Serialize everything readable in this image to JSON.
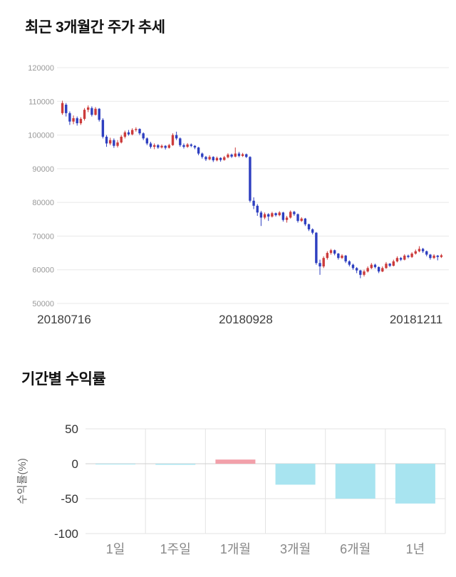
{
  "sections": {
    "price_trend": {
      "title": "최근 3개월간 주가 추세"
    },
    "period_returns": {
      "title": "기간별 수익률"
    }
  },
  "chart_data": [
    {
      "type": "candlestick",
      "title": "최근 3개월간 주가 추세",
      "x_tick_labels": [
        "20180716",
        "20180928",
        "20181211"
      ],
      "y_ticks": [
        120000,
        110000,
        100000,
        90000,
        80000,
        70000,
        60000,
        50000
      ],
      "ylim": [
        50000,
        120000
      ],
      "up_color": "#cc3b3b",
      "down_color": "#2e3fc0",
      "grid_color": "#e8e8e8",
      "tick_label_color": "#999999",
      "x_label_color": "#3d3d3d",
      "candles": [
        [
          106500,
          110200,
          106000,
          109500
        ],
        [
          109000,
          109500,
          105500,
          106500
        ],
        [
          106500,
          107000,
          103000,
          104000
        ],
        [
          104000,
          105800,
          103200,
          105000
        ],
        [
          105000,
          105500,
          102800,
          103500
        ],
        [
          103500,
          105300,
          103000,
          104800
        ],
        [
          104800,
          108000,
          104300,
          107500
        ],
        [
          107500,
          108800,
          106800,
          108200
        ],
        [
          108000,
          108500,
          105500,
          106000
        ],
        [
          106000,
          108300,
          105800,
          107800
        ],
        [
          107800,
          108000,
          104000,
          104500
        ],
        [
          104500,
          105000,
          99000,
          99500
        ],
        [
          99500,
          100000,
          96500,
          97500
        ],
        [
          97500,
          99200,
          97000,
          98500
        ],
        [
          98500,
          99000,
          96200,
          96800
        ],
        [
          96800,
          98500,
          96300,
          97800
        ],
        [
          97800,
          100000,
          97500,
          99500
        ],
        [
          99500,
          101300,
          99000,
          100800
        ],
        [
          100800,
          101500,
          99800,
          100200
        ],
        [
          100200,
          102000,
          99900,
          101500
        ],
        [
          101500,
          102300,
          101000,
          101800
        ],
        [
          101800,
          102000,
          100000,
          100500
        ],
        [
          100500,
          100800,
          98500,
          99000
        ],
        [
          99000,
          99300,
          97000,
          97500
        ],
        [
          97500,
          98000,
          96000,
          96500
        ],
        [
          96500,
          97500,
          95800,
          97000
        ],
        [
          97000,
          97300,
          95900,
          96300
        ],
        [
          96300,
          97200,
          96000,
          96800
        ],
        [
          96800,
          97000,
          95700,
          96200
        ],
        [
          96200,
          97400,
          96000,
          97000
        ],
        [
          97000,
          100500,
          96800,
          100000
        ],
        [
          100000,
          101000,
          98500,
          99000
        ],
        [
          99000,
          99300,
          96500,
          97000
        ],
        [
          97000,
          97500,
          96000,
          96500
        ],
        [
          96500,
          97600,
          96200,
          97200
        ],
        [
          97200,
          97500,
          96400,
          96800
        ],
        [
          96800,
          97000,
          95800,
          96300
        ],
        [
          96300,
          96500,
          94000,
          94500
        ],
        [
          94500,
          94800,
          93000,
          93500
        ],
        [
          93500,
          93800,
          92300,
          92800
        ],
        [
          92800,
          94000,
          92500,
          93500
        ],
        [
          93500,
          93700,
          92000,
          92500
        ],
        [
          92500,
          93600,
          92200,
          93200
        ],
        [
          93200,
          93400,
          92100,
          92600
        ],
        [
          92600,
          93800,
          92400,
          93400
        ],
        [
          93400,
          94600,
          93100,
          94200
        ],
        [
          94200,
          94500,
          93200,
          93600
        ],
        [
          93600,
          96300,
          93400,
          94500
        ],
        [
          94500,
          95000,
          93400,
          93800
        ],
        [
          93800,
          94700,
          93500,
          94300
        ],
        [
          94300,
          94500,
          93200,
          93500
        ],
        [
          93500,
          93700,
          80000,
          80500
        ],
        [
          80500,
          81500,
          78000,
          79000
        ],
        [
          79000,
          79500,
          76000,
          77000
        ],
        [
          77000,
          77500,
          73000,
          75500
        ],
        [
          75500,
          77000,
          75000,
          76500
        ],
        [
          76500,
          76800,
          74500,
          75800
        ],
        [
          75800,
          77200,
          75500,
          76800
        ],
        [
          76800,
          77000,
          75800,
          76200
        ],
        [
          76200,
          77400,
          75900,
          77000
        ],
        [
          77000,
          77200,
          74300,
          74800
        ],
        [
          74800,
          76000,
          74000,
          75500
        ],
        [
          75500,
          77600,
          75200,
          77200
        ],
        [
          77200,
          77500,
          76000,
          76500
        ],
        [
          76500,
          76700,
          74000,
          74500
        ],
        [
          74500,
          75600,
          74200,
          75200
        ],
        [
          75200,
          75400,
          73000,
          73500
        ],
        [
          73500,
          73700,
          71500,
          72000
        ],
        [
          72000,
          72300,
          70500,
          71000
        ],
        [
          71000,
          71200,
          61500,
          62000
        ],
        [
          62000,
          63000,
          58500,
          61000
        ],
        [
          61000,
          64000,
          60500,
          63500
        ],
        [
          63500,
          65500,
          63000,
          65000
        ],
        [
          65000,
          66200,
          64500,
          65800
        ],
        [
          65800,
          66000,
          64300,
          64800
        ],
        [
          64800,
          65000,
          63000,
          63500
        ],
        [
          63500,
          64600,
          63200,
          64200
        ],
        [
          64200,
          64400,
          62000,
          62500
        ],
        [
          62500,
          62800,
          61000,
          61500
        ],
        [
          61500,
          61800,
          60000,
          60500
        ],
        [
          60500,
          60800,
          59000,
          59800
        ],
        [
          59800,
          60000,
          57500,
          58500
        ],
        [
          58500,
          60000,
          58000,
          59500
        ],
        [
          59500,
          61000,
          59200,
          60500
        ],
        [
          60500,
          62000,
          60200,
          61500
        ],
        [
          61500,
          61800,
          60400,
          60800
        ],
        [
          60800,
          61000,
          59000,
          59500
        ],
        [
          59500,
          61000,
          59300,
          60500
        ],
        [
          60500,
          62300,
          60300,
          61800
        ],
        [
          61800,
          62000,
          60800,
          61200
        ],
        [
          61200,
          63000,
          61000,
          62500
        ],
        [
          62500,
          64000,
          62200,
          63500
        ],
        [
          63500,
          63800,
          62600,
          63000
        ],
        [
          63000,
          64600,
          62800,
          64200
        ],
        [
          64200,
          64500,
          63400,
          63800
        ],
        [
          63800,
          65200,
          63500,
          64800
        ],
        [
          64800,
          66000,
          64500,
          65500
        ],
        [
          65500,
          67000,
          65200,
          66200
        ],
        [
          66200,
          66500,
          65000,
          65500
        ],
        [
          65500,
          65700,
          64000,
          64500
        ],
        [
          64500,
          64700,
          63000,
          63500
        ],
        [
          63500,
          64600,
          63200,
          64200
        ],
        [
          64200,
          64400,
          62800,
          63800
        ],
        [
          63800,
          64700,
          63500,
          64300
        ]
      ]
    },
    {
      "type": "bar",
      "title": "기간별 수익률",
      "categories": [
        "1일",
        "1주일",
        "1개월",
        "3개월",
        "6개월",
        "1년"
      ],
      "values": [
        -0.4,
        -1.5,
        6,
        -30,
        -50,
        -57
      ],
      "ylabel": "수익률(%)",
      "y_ticks": [
        50,
        0,
        -50,
        -100
      ],
      "ylim": [
        -100,
        50
      ],
      "positive_color": "#f2a0aa",
      "negative_color": "#a8e4f0",
      "grid_color": "#e3e3e3",
      "zero_line_color": "#cfcfcf",
      "tick_label_color": "#333333",
      "category_label_color": "#888888",
      "ylabel_color": "#666666"
    }
  ]
}
